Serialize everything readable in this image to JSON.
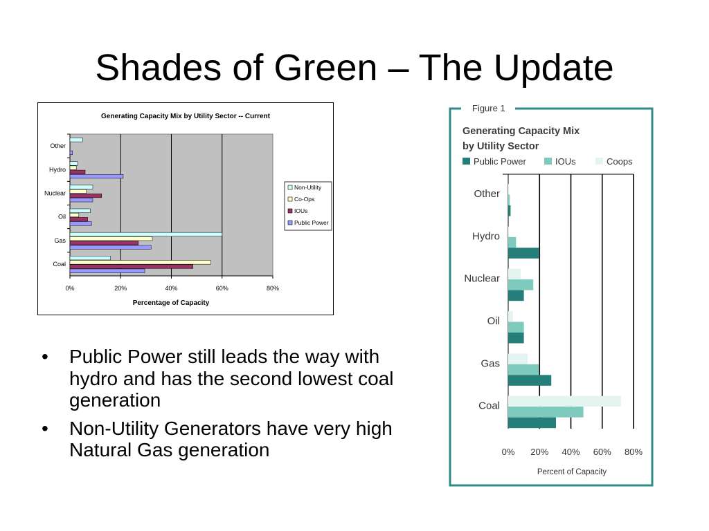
{
  "slide": {
    "title": "Shades of Green – The Update",
    "bullets": [
      "Public Power still leads the way with hydro and has the second lowest coal generation",
      "Non-Utility Generators have very high Natural Gas generation"
    ],
    "bullet_symbol": "•"
  },
  "chart_data": [
    {
      "type": "bar",
      "orientation": "horizontal",
      "title": "Generating Capacity Mix by Utility Sector -- Current",
      "xlabel": "Percentage of Capacity",
      "ylabel": "",
      "categories": [
        "Other",
        "Hydro",
        "Nuclear",
        "Oil",
        "Gas",
        "Coal"
      ],
      "series": [
        {
          "name": "Non-Utility",
          "values": [
            5,
            3,
            9,
            8,
            60,
            16
          ],
          "color": "#ccffff"
        },
        {
          "name": "Co-Ops",
          "values": [
            0,
            2.5,
            6.5,
            3.5,
            32.5,
            55.5
          ],
          "color": "#ffffcc"
        },
        {
          "name": "IOUs",
          "values": [
            0,
            6,
            12.5,
            7,
            27,
            48.5
          ],
          "color": "#993366"
        },
        {
          "name": "Public Power",
          "values": [
            1,
            21,
            9,
            8.5,
            32,
            29.5
          ],
          "color": "#9999ff"
        }
      ],
      "xlim": [
        0,
        80
      ],
      "xticks": [
        "0%",
        "20%",
        "40%",
        "60%",
        "80%"
      ],
      "grid": true,
      "plot_background": "#c0c0c0",
      "legend_position": "right"
    },
    {
      "type": "bar",
      "orientation": "horizontal",
      "figure_label": "Figure 1",
      "title": "Generating Capacity Mix by Utility Sector",
      "xlabel": "Percent of Capacity",
      "ylabel": "",
      "categories": [
        "Other",
        "Hydro",
        "Nuclear",
        "Oil",
        "Gas",
        "Coal"
      ],
      "series": [
        {
          "name": "Coops",
          "values": [
            0.5,
            0.5,
            8,
            3,
            12.5,
            72
          ],
          "color": "#e3f4f1"
        },
        {
          "name": "IOUs",
          "values": [
            1,
            5,
            16,
            10,
            19.5,
            48
          ],
          "color": "#7ecbbd"
        },
        {
          "name": "Public Power",
          "values": [
            1.5,
            19.5,
            10,
            10,
            27.5,
            30.5
          ],
          "color": "#257e79"
        }
      ],
      "legend_order": [
        "Public Power",
        "IOUs",
        "Coops"
      ],
      "xlim": [
        0,
        80
      ],
      "xticks": [
        "0%",
        "20%",
        "40%",
        "60%",
        "80%"
      ],
      "grid": true,
      "frame_color": "#2f8b86",
      "legend_position": "top"
    }
  ]
}
